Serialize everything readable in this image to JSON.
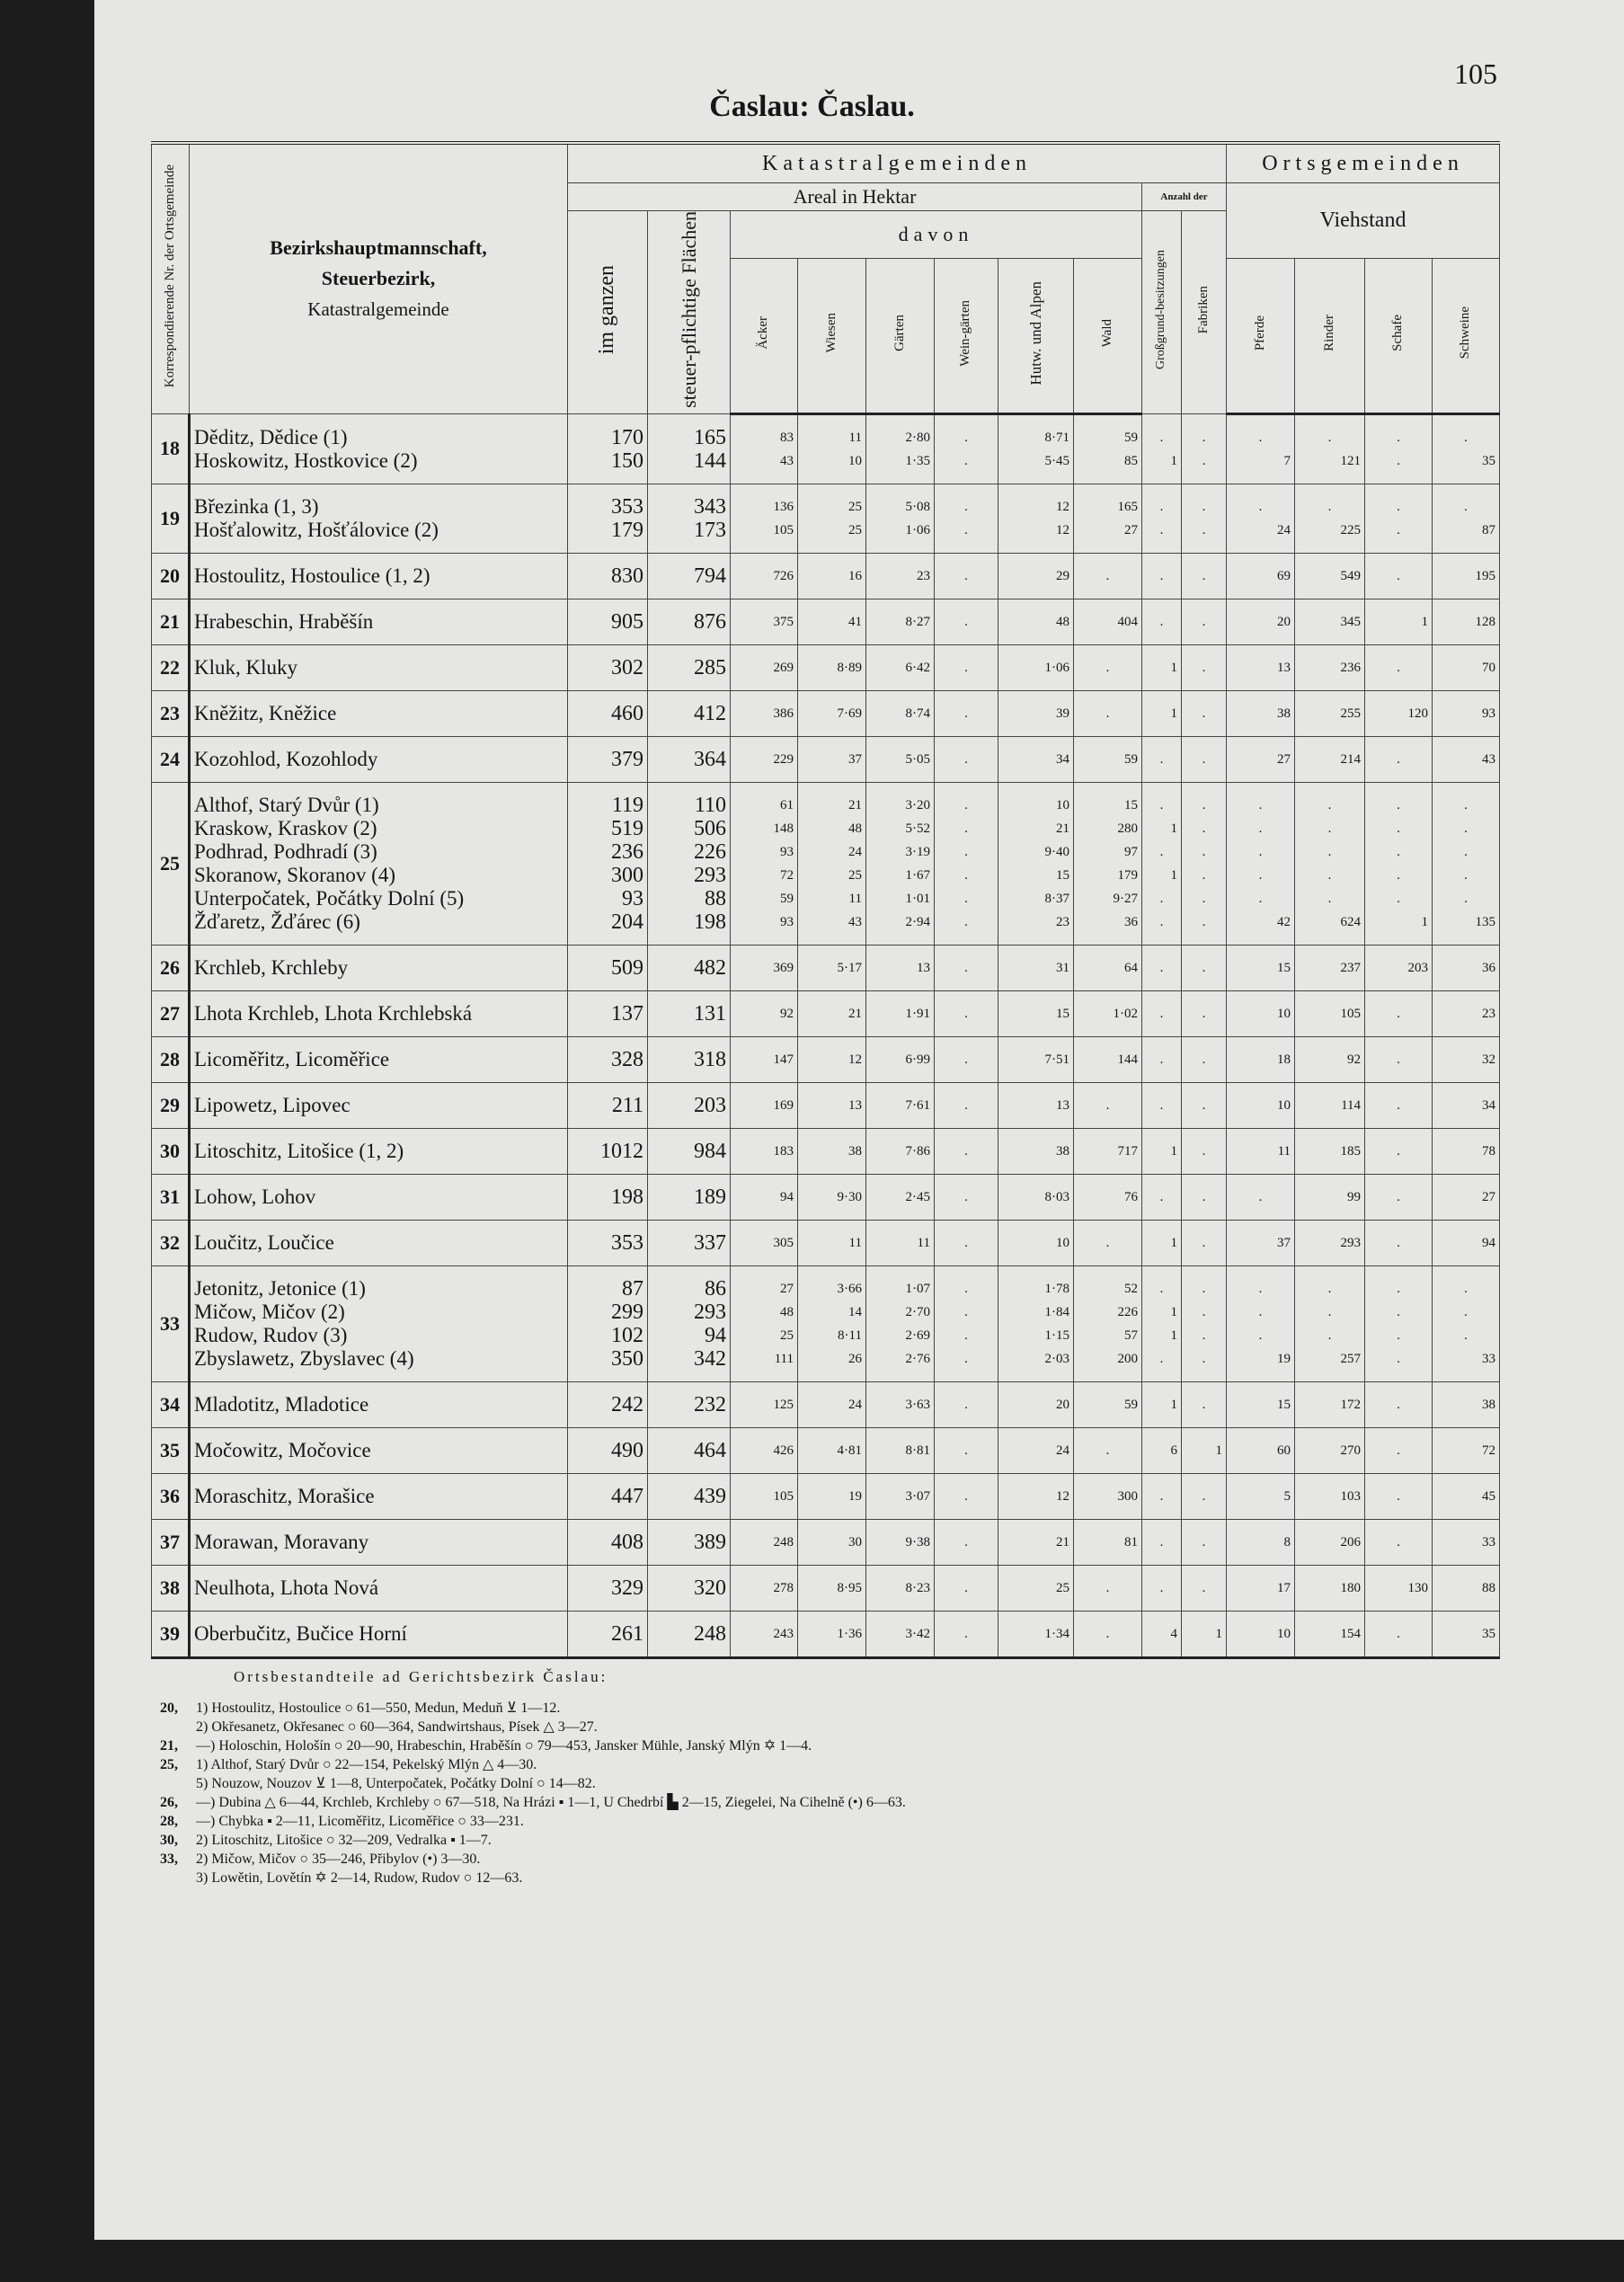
{
  "header": {
    "title": "Časlau: Časlau.",
    "page": "105"
  },
  "table": {
    "header": {
      "nr_col": "Korrespondierende Nr. der Ortsgemeinde",
      "name_col": [
        "Bezirkshauptmannschaft,",
        "Steuerbezirk,",
        "Katastralgemeinde"
      ],
      "katastral": "Katastralgemeinden",
      "ortsgemeinden": "Ortsgemeinden",
      "areal": "Areal in Hektar",
      "anzahl": "Anzahl der",
      "davon": "davon",
      "viehstand": "Viehstand",
      "columns": [
        "im ganzen",
        "steuer-pflichtige Flächen",
        "Äcker",
        "Wiesen",
        "Gärten",
        "Wein-gärten",
        "Hutw. und Alpen",
        "Wald",
        "Großgrund-besitzungen",
        "Fabriken",
        "Pferde",
        "Rinder",
        "Schafe",
        "Schweine"
      ]
    },
    "groups": [
      {
        "nr": "18",
        "rows": [
          {
            "name": "Děditz, Dědice (1)",
            "cells": [
              "170",
              "165",
              "83",
              "11",
              "2·80",
              ".",
              "8·71",
              "59",
              ".",
              ".",
              ".",
              ".",
              ".",
              "."
            ]
          },
          {
            "name": "Hoskowitz, Hostkovice (2)",
            "cells": [
              "150",
              "144",
              "43",
              "10",
              "1·35",
              ".",
              "5·45",
              "85",
              "1",
              ".",
              "7",
              "121",
              ".",
              "35"
            ]
          }
        ]
      },
      {
        "nr": "19",
        "rows": [
          {
            "name": "Březinka (1, 3)",
            "cells": [
              "353",
              "343",
              "136",
              "25",
              "5·08",
              ".",
              "12",
              "165",
              ".",
              ".",
              ".",
              ".",
              ".",
              "."
            ]
          },
          {
            "name": "Hošťalowitz, Hošťálovice (2)",
            "cells": [
              "179",
              "173",
              "105",
              "25",
              "1·06",
              ".",
              "12",
              "27",
              ".",
              ".",
              "24",
              "225",
              ".",
              "87"
            ]
          }
        ]
      },
      {
        "nr": "20",
        "rows": [
          {
            "name": "Hostoulitz, Hostoulice (1, 2)",
            "cells": [
              "830",
              "794",
              "726",
              "16",
              "23",
              ".",
              "29",
              ".",
              ".",
              ".",
              "69",
              "549",
              ".",
              "195"
            ]
          }
        ]
      },
      {
        "nr": "21",
        "rows": [
          {
            "name": "Hrabeschin, Hraběšín",
            "cells": [
              "905",
              "876",
              "375",
              "41",
              "8·27",
              ".",
              "48",
              "404",
              ".",
              ".",
              "20",
              "345",
              "1",
              "128"
            ]
          }
        ]
      },
      {
        "nr": "22",
        "rows": [
          {
            "name": "Kluk, Kluky",
            "cells": [
              "302",
              "285",
              "269",
              "8·89",
              "6·42",
              ".",
              "1·06",
              ".",
              "1",
              ".",
              "13",
              "236",
              ".",
              "70"
            ]
          }
        ]
      },
      {
        "nr": "23",
        "rows": [
          {
            "name": "Kněžitz, Kněžice",
            "cells": [
              "460",
              "412",
              "386",
              "7·69",
              "8·74",
              ".",
              "39",
              ".",
              "1",
              ".",
              "38",
              "255",
              "120",
              "93"
            ]
          }
        ]
      },
      {
        "nr": "24",
        "rows": [
          {
            "name": "Kozohlod, Kozohlody",
            "cells": [
              "379",
              "364",
              "229",
              "37",
              "5·05",
              ".",
              "34",
              "59",
              ".",
              ".",
              "27",
              "214",
              ".",
              "43"
            ]
          }
        ]
      },
      {
        "nr": "25",
        "rows": [
          {
            "name": "Althof, Starý Dvůr (1)",
            "cells": [
              "119",
              "110",
              "61",
              "21",
              "3·20",
              ".",
              "10",
              "15",
              ".",
              ".",
              ".",
              ".",
              ".",
              "."
            ]
          },
          {
            "name": "Kraskow, Kraskov (2)",
            "cells": [
              "519",
              "506",
              "148",
              "48",
              "5·52",
              ".",
              "21",
              "280",
              "1",
              ".",
              ".",
              ".",
              ".",
              "."
            ]
          },
          {
            "name": "Podhrad, Podhradí (3)",
            "cells": [
              "236",
              "226",
              "93",
              "24",
              "3·19",
              ".",
              "9·40",
              "97",
              ".",
              ".",
              ".",
              ".",
              ".",
              "."
            ]
          },
          {
            "name": "Skoranow, Skoranov (4)",
            "cells": [
              "300",
              "293",
              "72",
              "25",
              "1·67",
              ".",
              "15",
              "179",
              "1",
              ".",
              ".",
              ".",
              ".",
              "."
            ]
          },
          {
            "name": "Unterpočatek, Počátky Dolní (5)",
            "cells": [
              "93",
              "88",
              "59",
              "11",
              "1·01",
              ".",
              "8·37",
              "9·27",
              ".",
              ".",
              ".",
              ".",
              ".",
              "."
            ]
          },
          {
            "name": "Žďaretz, Žďárec (6)",
            "cells": [
              "204",
              "198",
              "93",
              "43",
              "2·94",
              ".",
              "23",
              "36",
              ".",
              ".",
              "42",
              "624",
              "1",
              "135"
            ]
          }
        ]
      },
      {
        "nr": "26",
        "rows": [
          {
            "name": "Krchleb, Krchleby",
            "cells": [
              "509",
              "482",
              "369",
              "5·17",
              "13",
              ".",
              "31",
              "64",
              ".",
              ".",
              "15",
              "237",
              "203",
              "36"
            ]
          }
        ]
      },
      {
        "nr": "27",
        "rows": [
          {
            "name": "Lhota Krchleb, Lhota Krchlebská",
            "cells": [
              "137",
              "131",
              "92",
              "21",
              "1·91",
              ".",
              "15",
              "1·02",
              ".",
              ".",
              "10",
              "105",
              ".",
              "23"
            ]
          }
        ]
      },
      {
        "nr": "28",
        "rows": [
          {
            "name": "Licoměřitz, Licoměřice",
            "cells": [
              "328",
              "318",
              "147",
              "12",
              "6·99",
              ".",
              "7·51",
              "144",
              ".",
              ".",
              "18",
              "92",
              ".",
              "32"
            ]
          }
        ]
      },
      {
        "nr": "29",
        "rows": [
          {
            "name": "Lipowetz, Lipovec",
            "cells": [
              "211",
              "203",
              "169",
              "13",
              "7·61",
              ".",
              "13",
              ".",
              ".",
              ".",
              "10",
              "114",
              ".",
              "34"
            ]
          }
        ]
      },
      {
        "nr": "30",
        "rows": [
          {
            "name": "Litoschitz, Litošice (1, 2)",
            "cells": [
              "1012",
              "984",
              "183",
              "38",
              "7·86",
              ".",
              "38",
              "717",
              "1",
              ".",
              "11",
              "185",
              ".",
              "78"
            ]
          }
        ]
      },
      {
        "nr": "31",
        "rows": [
          {
            "name": "Lohow, Lohov",
            "cells": [
              "198",
              "189",
              "94",
              "9·30",
              "2·45",
              ".",
              "8·03",
              "76",
              ".",
              ".",
              ".",
              "99",
              ".",
              "27"
            ]
          }
        ]
      },
      {
        "nr": "32",
        "rows": [
          {
            "name": "Loučitz, Loučice",
            "cells": [
              "353",
              "337",
              "305",
              "11",
              "11",
              ".",
              "10",
              ".",
              "1",
              ".",
              "37",
              "293",
              ".",
              "94"
            ]
          }
        ]
      },
      {
        "nr": "33",
        "rows": [
          {
            "name": "Jetonitz, Jetonice (1)",
            "cells": [
              "87",
              "86",
              "27",
              "3·66",
              "1·07",
              ".",
              "1·78",
              "52",
              ".",
              ".",
              ".",
              ".",
              ".",
              "."
            ]
          },
          {
            "name": "Mičow, Mičov (2)",
            "cells": [
              "299",
              "293",
              "48",
              "14",
              "2·70",
              ".",
              "1·84",
              "226",
              "1",
              ".",
              ".",
              ".",
              ".",
              "."
            ]
          },
          {
            "name": "Rudow, Rudov (3)",
            "cells": [
              "102",
              "94",
              "25",
              "8·11",
              "2·69",
              ".",
              "1·15",
              "57",
              "1",
              ".",
              ".",
              ".",
              ".",
              "."
            ]
          },
          {
            "name": "Zbyslawetz, Zbyslavec (4)",
            "cells": [
              "350",
              "342",
              "111",
              "26",
              "2·76",
              ".",
              "2·03",
              "200",
              ".",
              ".",
              "19",
              "257",
              ".",
              "33"
            ]
          }
        ]
      },
      {
        "nr": "34",
        "rows": [
          {
            "name": "Mladotitz, Mladotice",
            "cells": [
              "242",
              "232",
              "125",
              "24",
              "3·63",
              ".",
              "20",
              "59",
              "1",
              ".",
              "15",
              "172",
              ".",
              "38"
            ]
          }
        ]
      },
      {
        "nr": "35",
        "rows": [
          {
            "name": "Močowitz, Močovice",
            "cells": [
              "490",
              "464",
              "426",
              "4·81",
              "8·81",
              ".",
              "24",
              ".",
              "6",
              "1",
              "60",
              "270",
              ".",
              "72"
            ]
          }
        ]
      },
      {
        "nr": "36",
        "rows": [
          {
            "name": "Moraschitz, Morašice",
            "cells": [
              "447",
              "439",
              "105",
              "19",
              "3·07",
              ".",
              "12",
              "300",
              ".",
              ".",
              "5",
              "103",
              ".",
              "45"
            ]
          }
        ]
      },
      {
        "nr": "37",
        "rows": [
          {
            "name": "Morawan, Moravany",
            "cells": [
              "408",
              "389",
              "248",
              "30",
              "9·38",
              ".",
              "21",
              "81",
              ".",
              ".",
              "8",
              "206",
              ".",
              "33"
            ]
          }
        ]
      },
      {
        "nr": "38",
        "rows": [
          {
            "name": "Neulhota, Lhota Nová",
            "cells": [
              "329",
              "320",
              "278",
              "8·95",
              "8·23",
              ".",
              "25",
              ".",
              ".",
              ".",
              "17",
              "180",
              "130",
              "88"
            ]
          }
        ]
      },
      {
        "nr": "39",
        "rows": [
          {
            "name": "Oberbučitz, Bučice Horní",
            "cells": [
              "261",
              "248",
              "243",
              "1·36",
              "3·42",
              ".",
              "1·34",
              ".",
              "4",
              "1",
              "10",
              "154",
              ".",
              "35"
            ]
          }
        ]
      }
    ]
  },
  "footnotes": {
    "title": "Ortsbestandteile ad Gerichtsbezirk Časlau:",
    "lines": [
      {
        "nr": "20,",
        "text": "1) Hostoulitz, Hostoulice ○ 61—550, Medun, Meduň ⊻ 1—12."
      },
      {
        "nr": "",
        "text": "2) Okřesanetz, Okřesanec ○ 60—364, Sandwirtshaus, Písek △ 3—27."
      },
      {
        "nr": "21,",
        "text": "—) Holoschin, Hološín ○ 20—90, Hrabeschin, Hraběšín ○ 79—453, Jansker Mühle, Janský Mlýn ✡ 1—4."
      },
      {
        "nr": "25,",
        "text": "1) Althof, Starý Dvůr ○ 22—154, Pekelský Mlýn △ 4—30."
      },
      {
        "nr": "",
        "text": "5) Nouzow, Nouzov ⊻ 1—8, Unterpočatek, Počátky Dolní ○ 14—82."
      },
      {
        "nr": "26,",
        "text": "—) Dubina △ 6—44, Krchleb, Krchleby ○ 67—518, Na Hrázi ▪ 1—1, U Chedrbí ▙ 2—15, Ziegelei, Na Cihelně (•) 6—63."
      },
      {
        "nr": "28,",
        "text": "—) Chybka ▪ 2—11, Licoměřitz, Licoměřice ○ 33—231."
      },
      {
        "nr": "30,",
        "text": "2) Litoschitz, Litošice ○ 32—209, Vedralka ▪ 1—7."
      },
      {
        "nr": "33,",
        "text": "2) Mičow, Mičov ○ 35—246, Přibylov (•) 3—30."
      },
      {
        "nr": "",
        "text": "3) Lowětin, Lovětín ✡ 2—14, Rudow, Rudov ○ 12—63."
      }
    ]
  }
}
